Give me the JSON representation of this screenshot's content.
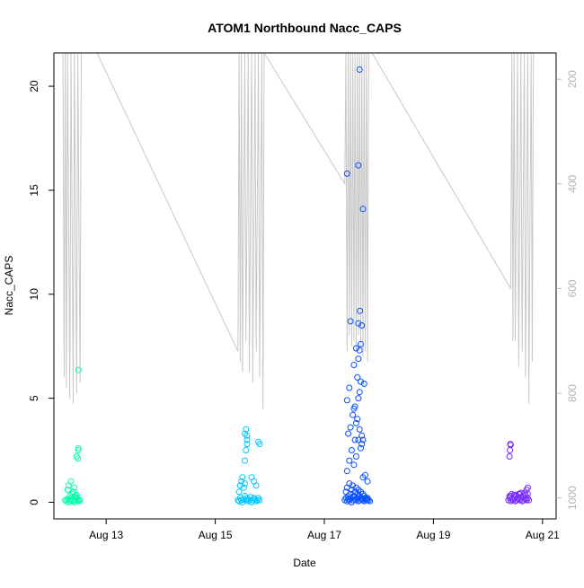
{
  "chart_data": {
    "type": "scatter",
    "title": "ATOM1 Northbound Nacc_CAPS",
    "xlabel": "Date",
    "ylabel": "Nacc_CAPS",
    "xlim": [
      "2023-08-12T01:00",
      "2023-08-21T06:00"
    ],
    "ylim": [
      -0.8,
      21.6
    ],
    "x_ticks": [
      {
        "label": "Aug 13",
        "value": "2023-08-13"
      },
      {
        "label": "Aug 15",
        "value": "2023-08-15"
      },
      {
        "label": "Aug 17",
        "value": "2023-08-17"
      },
      {
        "label": "Aug 19",
        "value": "2023-08-19"
      },
      {
        "label": "Aug 21",
        "value": "2023-08-21"
      }
    ],
    "y_ticks": [
      0,
      5,
      10,
      15,
      20
    ],
    "y2_axis": {
      "lim": [
        1040,
        150
      ],
      "ticks": [
        200,
        400,
        600,
        800,
        1000
      ],
      "color": "#b3b3b3",
      "line_color": "#c8c8c8"
    },
    "point_style": "open-circle",
    "series": [
      {
        "color": "#00ffaa",
        "x": [
          "2023-08-12T06:00",
          "2023-08-12T06:30",
          "2023-08-12T07:00",
          "2023-08-12T07:30",
          "2023-08-12T08:00",
          "2023-08-12T08:30",
          "2023-08-12T09:00",
          "2023-08-12T09:30",
          "2023-08-12T10:00",
          "2023-08-12T10:30",
          "2023-08-12T11:00",
          "2023-08-12T11:30",
          "2023-08-12T12:00",
          "2023-08-12T12:30",
          "2023-08-12T08:00",
          "2023-08-12T09:00",
          "2023-08-12T10:00",
          "2023-08-12T11:00",
          "2023-08-12T07:00",
          "2023-08-12T07:30",
          "2023-08-12T08:30",
          "2023-08-12T09:30",
          "2023-08-12T10:00",
          "2023-08-12T10:30",
          "2023-08-12T11:00",
          "2023-08-12T11:30",
          "2023-08-12T11:30",
          "2023-08-12T11:00",
          "2023-08-12T11:40",
          "2023-08-12T11:45",
          "2023-08-12T11:50"
        ],
        "y": [
          0.1,
          0.05,
          0.15,
          0.0,
          0.1,
          0.2,
          0.05,
          0.1,
          0.0,
          0.1,
          0.2,
          0.15,
          0.05,
          0.1,
          0.3,
          0.4,
          0.25,
          0.35,
          0.6,
          0.8,
          1.0,
          0.5,
          0.7,
          0.3,
          0.2,
          0.1,
          2.1,
          2.2,
          2.5,
          2.6,
          6.35
        ]
      },
      {
        "color": "#00c8ff",
        "x": [
          "2023-08-15T10:00",
          "2023-08-15T10:30",
          "2023-08-15T11:00",
          "2023-08-15T11:30",
          "2023-08-15T12:00",
          "2023-08-15T12:30",
          "2023-08-15T13:00",
          "2023-08-15T13:30",
          "2023-08-15T14:00",
          "2023-08-15T14:30",
          "2023-08-15T15:00",
          "2023-08-15T15:30",
          "2023-08-15T16:00",
          "2023-08-15T16:30",
          "2023-08-15T17:00",
          "2023-08-15T17:30",
          "2023-08-15T18:00",
          "2023-08-15T18:30",
          "2023-08-15T19:00",
          "2023-08-15T19:30",
          "2023-08-15T10:30",
          "2023-08-15T11:00",
          "2023-08-15T11:30",
          "2023-08-15T12:00",
          "2023-08-15T12:30",
          "2023-08-15T13:00",
          "2023-08-15T13:00",
          "2023-08-15T13:30",
          "2023-08-15T14:00",
          "2023-08-15T16:00",
          "2023-08-15T17:00",
          "2023-08-15T18:00",
          "2023-08-15T13:00",
          "2023-08-15T13:30",
          "2023-08-15T14:00",
          "2023-08-15T14:00",
          "2023-08-15T19:00",
          "2023-08-15T19:30"
        ],
        "y": [
          0.1,
          0.05,
          0.2,
          0.1,
          0.0,
          0.15,
          0.3,
          0.1,
          0.2,
          0.05,
          0.1,
          0.25,
          0.0,
          0.1,
          0.2,
          0.15,
          0.05,
          0.1,
          0.2,
          0.1,
          0.5,
          0.8,
          1.0,
          1.2,
          0.7,
          0.9,
          2.0,
          2.5,
          2.8,
          1.2,
          1.0,
          0.8,
          3.3,
          3.5,
          3.2,
          3.0,
          2.9,
          2.8
        ]
      },
      {
        "color": "#0a50ff",
        "x": [
          "2023-08-17T09:00",
          "2023-08-17T09:30",
          "2023-08-17T10:00",
          "2023-08-17T10:30",
          "2023-08-17T11:00",
          "2023-08-17T11:30",
          "2023-08-17T12:00",
          "2023-08-17T12:30",
          "2023-08-17T13:00",
          "2023-08-17T13:30",
          "2023-08-17T14:00",
          "2023-08-17T14:30",
          "2023-08-17T15:00",
          "2023-08-17T15:30",
          "2023-08-17T16:00",
          "2023-08-17T16:30",
          "2023-08-17T17:00",
          "2023-08-17T17:30",
          "2023-08-17T18:00",
          "2023-08-17T18:30",
          "2023-08-17T19:00",
          "2023-08-17T19:30",
          "2023-08-17T20:00",
          "2023-08-17T09:30",
          "2023-08-17T10:00",
          "2023-08-17T10:30",
          "2023-08-17T11:00",
          "2023-08-17T11:30",
          "2023-08-17T12:00",
          "2023-08-17T12:30",
          "2023-08-17T13:00",
          "2023-08-17T13:30",
          "2023-08-17T14:00",
          "2023-08-17T14:30",
          "2023-08-17T15:00",
          "2023-08-17T15:30",
          "2023-08-17T16:00",
          "2023-08-17T16:30",
          "2023-08-17T17:00",
          "2023-08-17T17:30",
          "2023-08-17T18:00",
          "2023-08-17T18:30",
          "2023-08-17T19:00",
          "2023-08-17T10:00",
          "2023-08-17T11:00",
          "2023-08-17T12:00",
          "2023-08-17T13:00",
          "2023-08-17T14:00",
          "2023-08-17T15:00",
          "2023-08-17T16:00",
          "2023-08-17T17:00",
          "2023-08-17T18:00",
          "2023-08-17T19:00",
          "2023-08-17T10:30",
          "2023-08-17T11:30",
          "2023-08-17T13:30",
          "2023-08-17T14:30",
          "2023-08-17T15:30",
          "2023-08-17T16:30",
          "2023-08-17T12:30",
          "2023-08-17T14:00",
          "2023-08-17T10:00",
          "2023-08-17T13:00",
          "2023-08-17T15:00",
          "2023-08-17T16:30",
          "2023-08-17T17:00",
          "2023-08-17T11:00",
          "2023-08-17T13:30",
          "2023-08-17T16:00",
          "2023-08-17T15:30",
          "2023-08-17T14:30",
          "2023-08-17T13:00",
          "2023-08-17T15:00",
          "2023-08-17T16:00",
          "2023-08-17T11:30",
          "2023-08-17T17:30",
          "2023-08-17T14:00",
          "2023-08-17T15:30",
          "2023-08-17T15:00",
          "2023-08-17T15:40",
          "2023-08-17T16:30",
          "2023-08-17T10:00",
          "2023-08-17T15:00",
          "2023-08-17T15:30",
          "2023-08-17T17:00"
        ],
        "y": [
          0.1,
          0.2,
          0.05,
          0.15,
          0.1,
          0.2,
          0.0,
          0.1,
          0.25,
          0.15,
          0.1,
          0.2,
          0.05,
          0.1,
          0.2,
          0.15,
          0.1,
          0.05,
          0.2,
          0.1,
          0.15,
          0.1,
          0.05,
          0.5,
          0.7,
          0.3,
          0.9,
          0.4,
          0.6,
          0.8,
          0.3,
          0.5,
          0.7,
          0.4,
          0.6,
          0.3,
          0.5,
          0.2,
          0.4,
          0.3,
          0.2,
          0.1,
          0.2,
          1.5,
          2.0,
          2.5,
          1.8,
          2.2,
          3.0,
          2.6,
          1.2,
          1.3,
          1.0,
          3.3,
          3.6,
          3.0,
          4.0,
          3.5,
          2.8,
          4.2,
          3.8,
          4.9,
          4.5,
          5.0,
          3.2,
          3.0,
          5.5,
          4.6,
          5.8,
          5.3,
          6.0,
          6.6,
          6.9,
          7.6,
          8.7,
          5.7,
          7.4,
          7.3,
          8.6,
          9.2,
          8.5,
          15.8,
          16.2,
          20.8,
          14.1
        ]
      },
      {
        "color": "#7a2cff",
        "x": [
          "2023-08-20T09:00",
          "2023-08-20T09:30",
          "2023-08-20T10:00",
          "2023-08-20T10:30",
          "2023-08-20T11:00",
          "2023-08-20T11:30",
          "2023-08-20T12:00",
          "2023-08-20T12:30",
          "2023-08-20T13:00",
          "2023-08-20T13:30",
          "2023-08-20T14:00",
          "2023-08-20T14:30",
          "2023-08-20T15:00",
          "2023-08-20T15:30",
          "2023-08-20T16:00",
          "2023-08-20T16:30",
          "2023-08-20T17:00",
          "2023-08-20T17:30",
          "2023-08-20T18:00",
          "2023-08-20T09:30",
          "2023-08-20T10:30",
          "2023-08-20T11:30",
          "2023-08-20T12:30",
          "2023-08-20T13:30",
          "2023-08-20T14:30",
          "2023-08-20T15:30",
          "2023-08-20T16:30",
          "2023-08-20T17:30",
          "2023-08-20T10:00",
          "2023-08-20T12:00",
          "2023-08-20T14:00",
          "2023-08-20T16:00",
          "2023-08-20T17:30",
          "2023-08-20T17:00",
          "2023-08-20T09:30",
          "2023-08-20T09:40",
          "2023-08-20T09:50",
          "2023-08-20T10:00"
        ],
        "y": [
          0.1,
          0.2,
          0.05,
          0.15,
          0.1,
          0.2,
          0.05,
          0.1,
          0.2,
          0.15,
          0.1,
          0.25,
          0.05,
          0.1,
          0.2,
          0.15,
          0.1,
          0.2,
          0.1,
          0.3,
          0.4,
          0.35,
          0.3,
          0.4,
          0.45,
          0.3,
          0.35,
          0.4,
          0.3,
          0.35,
          0.4,
          0.45,
          0.7,
          0.6,
          2.2,
          2.5,
          2.8,
          2.75
        ]
      }
    ],
    "secondary_line": {
      "x": [
        "2023-08-12T05:00",
        "2023-08-12T05:30",
        "2023-08-12T06:00",
        "2023-08-12T06:30",
        "2023-08-12T07:00",
        "2023-08-12T08:00",
        "2023-08-12T08:30",
        "2023-08-12T09:30",
        "2023-08-12T10:00",
        "2023-08-12T11:00",
        "2023-08-12T11:30",
        "2023-08-12T12:30",
        "2023-08-12T13:00",
        "2023-08-12T14:30",
        "2023-08-12T15:00",
        "2023-08-12T20:00",
        "2023-08-15T10:00",
        "2023-08-15T10:30",
        "2023-08-15T11:00",
        "2023-08-15T11:30",
        "2023-08-15T12:00",
        "2023-08-15T13:00",
        "2023-08-15T13:30",
        "2023-08-15T14:30",
        "2023-08-15T15:00",
        "2023-08-15T16:00",
        "2023-08-15T16:30",
        "2023-08-15T17:30",
        "2023-08-15T18:00",
        "2023-08-15T19:00",
        "2023-08-15T19:30",
        "2023-08-15T20:30",
        "2023-08-15T21:00",
        "2023-08-15T21:30",
        "2023-08-17T09:00",
        "2023-08-17T09:30",
        "2023-08-17T10:00",
        "2023-08-17T10:30",
        "2023-08-17T11:00",
        "2023-08-17T11:30",
        "2023-08-17T12:00",
        "2023-08-17T12:30",
        "2023-08-17T13:00",
        "2023-08-17T13:30",
        "2023-08-17T14:00",
        "2023-08-17T14:30",
        "2023-08-17T15:00",
        "2023-08-17T15:30",
        "2023-08-17T16:00",
        "2023-08-17T16:30",
        "2023-08-17T17:00",
        "2023-08-17T17:30",
        "2023-08-17T18:00",
        "2023-08-17T18:30",
        "2023-08-17T19:00",
        "2023-08-17T19:30",
        "2023-08-17T20:00",
        "2023-08-17T21:00",
        "2023-08-20T10:00",
        "2023-08-20T10:30",
        "2023-08-20T11:00",
        "2023-08-20T11:30",
        "2023-08-20T12:00",
        "2023-08-20T13:00",
        "2023-08-20T13:30",
        "2023-08-20T14:30",
        "2023-08-20T15:00",
        "2023-08-20T16:00",
        "2023-08-20T16:30",
        "2023-08-20T17:30",
        "2023-08-20T18:00",
        "2023-08-20T19:00",
        "2023-08-20T19:30",
        "2023-08-20T20:00"
      ],
      "y": [
        150,
        770,
        150,
        790,
        150,
        810,
        150,
        820,
        150,
        800,
        150,
        780,
        150,
        150,
        150,
        150,
        720,
        150,
        740,
        150,
        760,
        150,
        700,
        150,
        760,
        150,
        780,
        150,
        720,
        150,
        770,
        150,
        830,
        150,
        400,
        150,
        720,
        150,
        690,
        150,
        710,
        150,
        700,
        150,
        720,
        150,
        690,
        150,
        710,
        150,
        730,
        150,
        720,
        150,
        740,
        150,
        150,
        150,
        600,
        150,
        700,
        150,
        700,
        150,
        750,
        150,
        720,
        150,
        770,
        150,
        820,
        150,
        740,
        150
      ]
    }
  }
}
